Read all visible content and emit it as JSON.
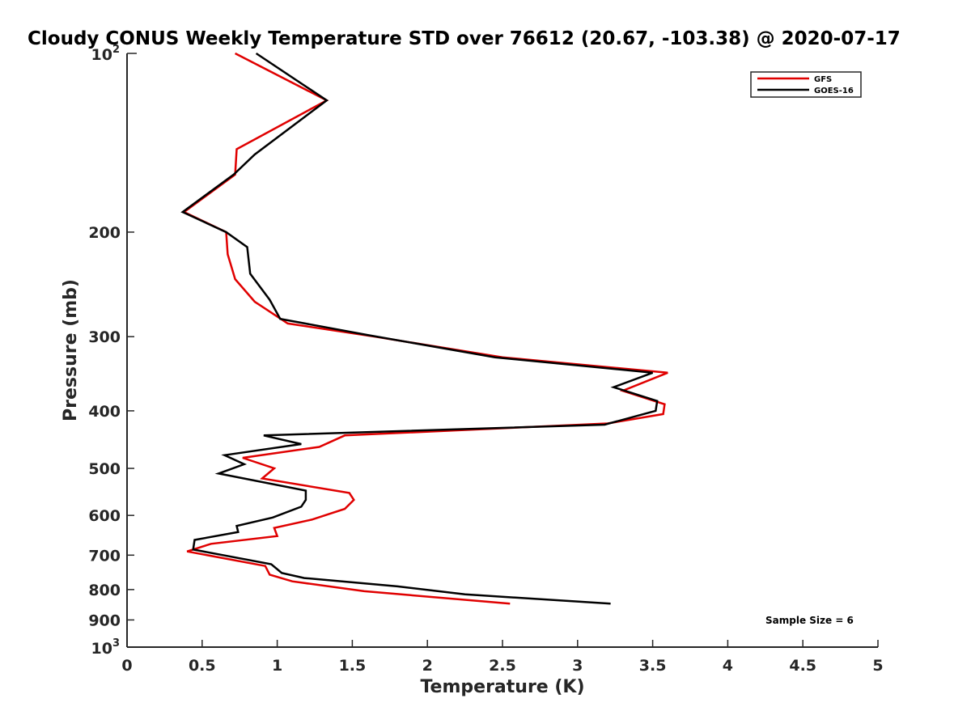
{
  "chart_data": {
    "type": "line",
    "title": "Cloudy CONUS Weekly Temperature STD over 76612 (20.67, -103.38) @ 2020-07-17",
    "xlabel": "Temperature (K)",
    "ylabel": "Pressure (mb)",
    "xlim": [
      0,
      5
    ],
    "ylim": [
      100,
      1000
    ],
    "yscale": "log",
    "y_reversed": true,
    "x_ticks": [
      0,
      0.5,
      1,
      1.5,
      2,
      2.5,
      3,
      3.5,
      4,
      4.5,
      5
    ],
    "x_tick_labels": [
      "0",
      "0.5",
      "1",
      "1.5",
      "2",
      "2.5",
      "3",
      "3.5",
      "4",
      "4.5",
      "5"
    ],
    "y_ticks": [
      200,
      300,
      400,
      500,
      600,
      700,
      800,
      900
    ],
    "y_tick_labels": [
      "200",
      "300",
      "400",
      "500",
      "600",
      "700",
      "800",
      "900"
    ],
    "y_decade_labels": [
      {
        "value": 100,
        "base": "10",
        "exp": "2"
      },
      {
        "value": 1000,
        "base": "10",
        "exp": "3"
      }
    ],
    "legend_position": "top-right",
    "grid": false,
    "annotation": "Sample Size = 6",
    "series": [
      {
        "name": "GFS",
        "color": "#e00000",
        "x": [
          0.72,
          1.33,
          0.73,
          0.72,
          0.38,
          0.66,
          0.67,
          0.72,
          0.85,
          1.07,
          1.65,
          2.5,
          3.6,
          3.3,
          3.58,
          3.57,
          3.2,
          1.45,
          1.28,
          0.77,
          0.98,
          0.9,
          1.48,
          1.51,
          1.45,
          1.23,
          0.98,
          1.0,
          0.56,
          0.4,
          0.92,
          0.95,
          1.1,
          1.58,
          2.55
        ],
        "y": [
          100,
          120,
          145,
          160,
          185,
          200,
          218,
          240,
          262,
          285,
          300,
          325,
          345,
          370,
          390,
          405,
          420,
          440,
          460,
          480,
          500,
          520,
          550,
          565,
          585,
          610,
          630,
          650,
          670,
          690,
          730,
          755,
          775,
          805,
          845
        ]
      },
      {
        "name": "GOES-16",
        "color": "#000000",
        "x": [
          0.86,
          1.33,
          0.85,
          0.71,
          0.37,
          0.66,
          0.8,
          0.82,
          0.95,
          1.02,
          1.6,
          2.45,
          3.5,
          3.24,
          3.53,
          3.52,
          3.18,
          0.91,
          1.16,
          0.65,
          0.78,
          0.61,
          1.19,
          1.19,
          1.16,
          0.97,
          0.73,
          0.74,
          0.45,
          0.44,
          0.96,
          1.03,
          1.18,
          1.8,
          2.25,
          3.22
        ],
        "y": [
          100,
          120,
          148,
          160,
          185,
          200,
          212,
          235,
          260,
          280,
          298,
          325,
          345,
          365,
          385,
          400,
          422,
          440,
          455,
          475,
          492,
          510,
          545,
          565,
          580,
          605,
          625,
          640,
          660,
          685,
          725,
          750,
          765,
          790,
          815,
          845
        ]
      }
    ]
  }
}
